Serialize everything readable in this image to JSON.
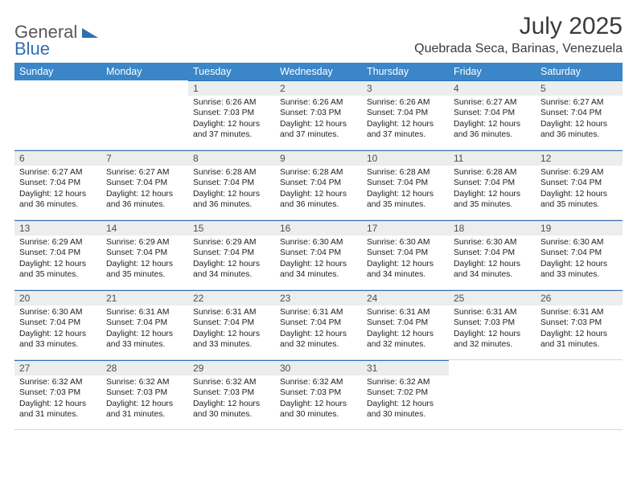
{
  "logo": {
    "part1": "General",
    "part2": "Blue"
  },
  "title": "July 2025",
  "location": "Quebrada Seca, Barinas, Venezuela",
  "colors": {
    "header_bg": "#3a86c8",
    "header_fg": "#ffffff",
    "daynum_bg": "#eceded",
    "daynum_border": "#2f6fb3",
    "text": "#222222",
    "logo_gray": "#595959",
    "logo_blue": "#2f6fb3"
  },
  "dayNames": [
    "Sunday",
    "Monday",
    "Tuesday",
    "Wednesday",
    "Thursday",
    "Friday",
    "Saturday"
  ],
  "weeks": [
    [
      null,
      null,
      {
        "n": "1",
        "sr": "6:26 AM",
        "ss": "7:03 PM",
        "dl": "12 hours and 37 minutes."
      },
      {
        "n": "2",
        "sr": "6:26 AM",
        "ss": "7:03 PM",
        "dl": "12 hours and 37 minutes."
      },
      {
        "n": "3",
        "sr": "6:26 AM",
        "ss": "7:04 PM",
        "dl": "12 hours and 37 minutes."
      },
      {
        "n": "4",
        "sr": "6:27 AM",
        "ss": "7:04 PM",
        "dl": "12 hours and 36 minutes."
      },
      {
        "n": "5",
        "sr": "6:27 AM",
        "ss": "7:04 PM",
        "dl": "12 hours and 36 minutes."
      }
    ],
    [
      {
        "n": "6",
        "sr": "6:27 AM",
        "ss": "7:04 PM",
        "dl": "12 hours and 36 minutes."
      },
      {
        "n": "7",
        "sr": "6:27 AM",
        "ss": "7:04 PM",
        "dl": "12 hours and 36 minutes."
      },
      {
        "n": "8",
        "sr": "6:28 AM",
        "ss": "7:04 PM",
        "dl": "12 hours and 36 minutes."
      },
      {
        "n": "9",
        "sr": "6:28 AM",
        "ss": "7:04 PM",
        "dl": "12 hours and 36 minutes."
      },
      {
        "n": "10",
        "sr": "6:28 AM",
        "ss": "7:04 PM",
        "dl": "12 hours and 35 minutes."
      },
      {
        "n": "11",
        "sr": "6:28 AM",
        "ss": "7:04 PM",
        "dl": "12 hours and 35 minutes."
      },
      {
        "n": "12",
        "sr": "6:29 AM",
        "ss": "7:04 PM",
        "dl": "12 hours and 35 minutes."
      }
    ],
    [
      {
        "n": "13",
        "sr": "6:29 AM",
        "ss": "7:04 PM",
        "dl": "12 hours and 35 minutes."
      },
      {
        "n": "14",
        "sr": "6:29 AM",
        "ss": "7:04 PM",
        "dl": "12 hours and 35 minutes."
      },
      {
        "n": "15",
        "sr": "6:29 AM",
        "ss": "7:04 PM",
        "dl": "12 hours and 34 minutes."
      },
      {
        "n": "16",
        "sr": "6:30 AM",
        "ss": "7:04 PM",
        "dl": "12 hours and 34 minutes."
      },
      {
        "n": "17",
        "sr": "6:30 AM",
        "ss": "7:04 PM",
        "dl": "12 hours and 34 minutes."
      },
      {
        "n": "18",
        "sr": "6:30 AM",
        "ss": "7:04 PM",
        "dl": "12 hours and 34 minutes."
      },
      {
        "n": "19",
        "sr": "6:30 AM",
        "ss": "7:04 PM",
        "dl": "12 hours and 33 minutes."
      }
    ],
    [
      {
        "n": "20",
        "sr": "6:30 AM",
        "ss": "7:04 PM",
        "dl": "12 hours and 33 minutes."
      },
      {
        "n": "21",
        "sr": "6:31 AM",
        "ss": "7:04 PM",
        "dl": "12 hours and 33 minutes."
      },
      {
        "n": "22",
        "sr": "6:31 AM",
        "ss": "7:04 PM",
        "dl": "12 hours and 33 minutes."
      },
      {
        "n": "23",
        "sr": "6:31 AM",
        "ss": "7:04 PM",
        "dl": "12 hours and 32 minutes."
      },
      {
        "n": "24",
        "sr": "6:31 AM",
        "ss": "7:04 PM",
        "dl": "12 hours and 32 minutes."
      },
      {
        "n": "25",
        "sr": "6:31 AM",
        "ss": "7:03 PM",
        "dl": "12 hours and 32 minutes."
      },
      {
        "n": "26",
        "sr": "6:31 AM",
        "ss": "7:03 PM",
        "dl": "12 hours and 31 minutes."
      }
    ],
    [
      {
        "n": "27",
        "sr": "6:32 AM",
        "ss": "7:03 PM",
        "dl": "12 hours and 31 minutes."
      },
      {
        "n": "28",
        "sr": "6:32 AM",
        "ss": "7:03 PM",
        "dl": "12 hours and 31 minutes."
      },
      {
        "n": "29",
        "sr": "6:32 AM",
        "ss": "7:03 PM",
        "dl": "12 hours and 30 minutes."
      },
      {
        "n": "30",
        "sr": "6:32 AM",
        "ss": "7:03 PM",
        "dl": "12 hours and 30 minutes."
      },
      {
        "n": "31",
        "sr": "6:32 AM",
        "ss": "7:02 PM",
        "dl": "12 hours and 30 minutes."
      },
      null,
      null
    ]
  ],
  "labels": {
    "sunrise": "Sunrise:",
    "sunset": "Sunset:",
    "daylight": "Daylight:"
  }
}
